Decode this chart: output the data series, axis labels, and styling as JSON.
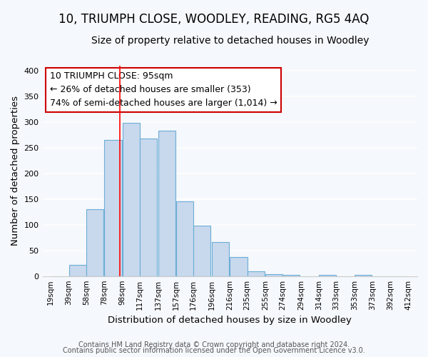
{
  "title": "10, TRIUMPH CLOSE, WOODLEY, READING, RG5 4AQ",
  "subtitle": "Size of property relative to detached houses in Woodley",
  "xlabel": "Distribution of detached houses by size in Woodley",
  "ylabel": "Number of detached properties",
  "bar_left_edges": [
    19,
    39,
    58,
    78,
    98,
    117,
    137,
    157,
    176,
    196,
    216,
    235,
    255,
    274,
    294,
    314,
    333,
    353,
    373,
    392
  ],
  "bar_heights": [
    0,
    22,
    130,
    265,
    298,
    267,
    283,
    146,
    98,
    66,
    37,
    9,
    4,
    3,
    0,
    3,
    0,
    2,
    0,
    0
  ],
  "bar_widths": [
    19,
    19,
    19,
    19,
    19,
    19,
    19,
    19,
    19,
    19,
    19,
    19,
    19,
    19,
    19,
    19,
    19,
    19,
    19,
    19
  ],
  "tick_labels": [
    "19sqm",
    "39sqm",
    "58sqm",
    "78sqm",
    "98sqm",
    "117sqm",
    "137sqm",
    "157sqm",
    "176sqm",
    "196sqm",
    "216sqm",
    "235sqm",
    "255sqm",
    "274sqm",
    "294sqm",
    "314sqm",
    "333sqm",
    "353sqm",
    "373sqm",
    "392sqm",
    "412sqm"
  ],
  "tick_positions": [
    19,
    39,
    58,
    78,
    98,
    117,
    137,
    157,
    176,
    196,
    216,
    235,
    255,
    274,
    294,
    314,
    333,
    353,
    373,
    392,
    412
  ],
  "bar_color": "#c8d8ed",
  "bar_edge_color": "#6baed6",
  "red_line_x": 95,
  "ylim": [
    0,
    410
  ],
  "xlim": [
    10,
    422
  ],
  "annotation_line1": "10 TRIUMPH CLOSE: 95sqm",
  "annotation_line2": "← 26% of detached houses are smaller (353)",
  "annotation_line3": "74% of semi-detached houses are larger (1,014) →",
  "footnote1": "Contains HM Land Registry data © Crown copyright and database right 2024.",
  "footnote2": "Contains public sector information licensed under the Open Government Licence v3.0.",
  "background_color": "#f5f8fc",
  "plot_bg_color": "#f5f8fc",
  "grid_color": "#ffffff",
  "title_fontsize": 12,
  "subtitle_fontsize": 10,
  "axis_label_fontsize": 9.5,
  "tick_fontsize": 7.5,
  "annotation_fontsize": 9,
  "footnote_fontsize": 7
}
